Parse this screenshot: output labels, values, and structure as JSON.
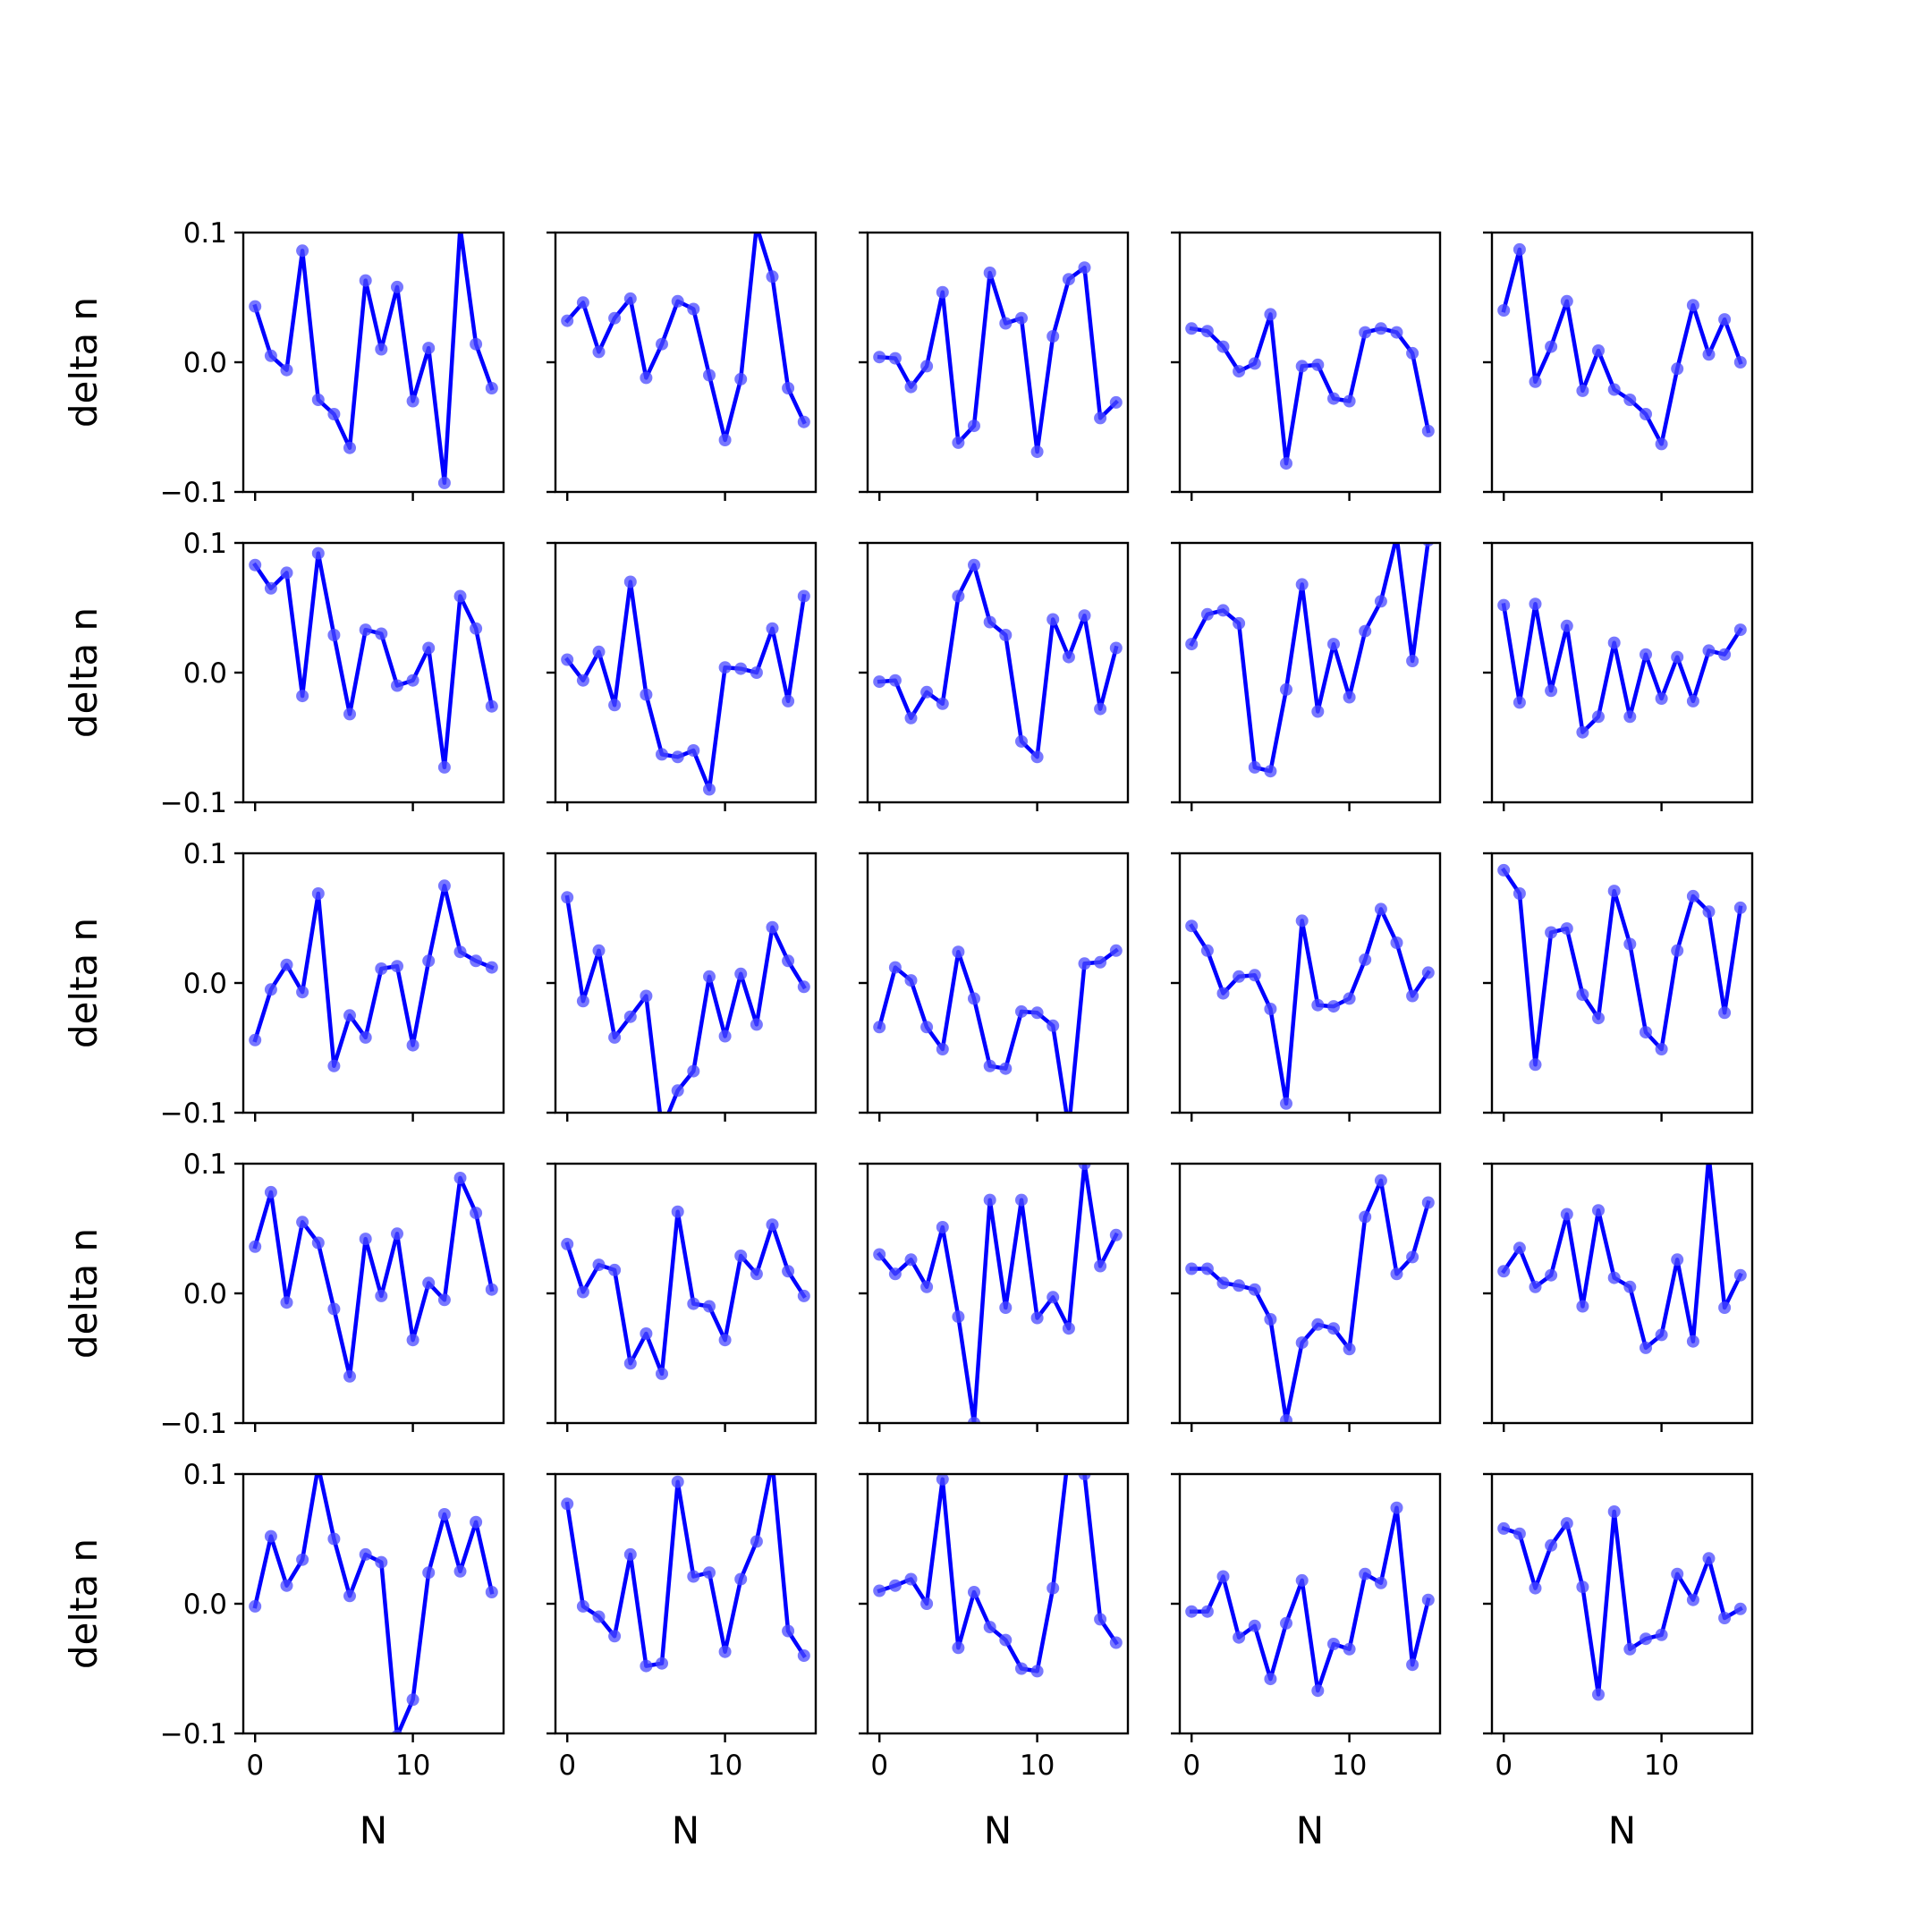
{
  "chart_data": {
    "type": "line",
    "layout": "5x5 grid of subplots",
    "xlabel": "N",
    "ylabel": "delta n",
    "xlim": [
      -0.75,
      15.75
    ],
    "ylim": [
      -0.1,
      0.1
    ],
    "xticks": [
      0,
      10
    ],
    "yticks": [
      -0.1,
      0.0,
      0.1
    ],
    "ytick_labels": [
      "−0.1",
      "0.0",
      "0.1"
    ],
    "grid": false,
    "legend": "none",
    "line_color": "#0000ff",
    "marker_color": "#4a4aff",
    "x": [
      0,
      1,
      2,
      3,
      4,
      5,
      6,
      7,
      8,
      9,
      10,
      11,
      12,
      13,
      14,
      15
    ],
    "panels": [
      [
        0.043,
        0.005,
        -0.006,
        0.086,
        -0.029,
        -0.04,
        -0.066,
        0.063,
        0.01,
        0.058,
        -0.03,
        0.011,
        -0.093,
        0.104,
        0.014,
        -0.02
      ],
      [
        0.032,
        0.046,
        0.008,
        0.034,
        0.049,
        -0.012,
        0.014,
        0.047,
        0.041,
        -0.01,
        -0.06,
        -0.013,
        0.105,
        0.066,
        -0.02,
        -0.046
      ],
      [
        0.004,
        0.003,
        -0.019,
        -0.003,
        0.054,
        -0.062,
        -0.049,
        0.069,
        0.03,
        0.034,
        -0.069,
        0.02,
        0.064,
        0.073,
        -0.043,
        -0.031
      ],
      [
        0.026,
        0.024,
        0.012,
        -0.007,
        -0.001,
        0.037,
        -0.078,
        -0.003,
        -0.002,
        -0.028,
        -0.03,
        0.023,
        0.026,
        0.023,
        0.007,
        -0.053
      ],
      [
        0.04,
        0.087,
        -0.015,
        0.012,
        0.047,
        -0.022,
        0.009,
        -0.021,
        -0.029,
        -0.04,
        -0.063,
        -0.005,
        0.044,
        0.006,
        0.033,
        0.0
      ],
      [
        0.083,
        0.065,
        0.077,
        -0.018,
        0.092,
        0.029,
        -0.032,
        0.033,
        0.03,
        -0.01,
        -0.006,
        0.019,
        -0.073,
        0.059,
        0.034,
        -0.026
      ],
      [
        0.01,
        -0.006,
        0.016,
        -0.025,
        0.07,
        -0.017,
        -0.063,
        -0.065,
        -0.06,
        -0.09,
        0.004,
        0.003,
        0.0,
        0.034,
        -0.022,
        0.059
      ],
      [
        -0.007,
        -0.006,
        -0.035,
        -0.015,
        -0.024,
        0.059,
        0.083,
        0.039,
        0.029,
        -0.053,
        -0.065,
        0.041,
        0.012,
        0.044,
        -0.028,
        0.019
      ],
      [
        0.022,
        0.045,
        0.048,
        0.038,
        -0.073,
        -0.076,
        -0.013,
        0.068,
        -0.03,
        0.022,
        -0.019,
        0.032,
        0.055,
        0.105,
        0.009,
        0.102
      ],
      [
        0.052,
        -0.023,
        0.053,
        -0.014,
        0.036,
        -0.046,
        -0.034,
        0.023,
        -0.034,
        0.014,
        -0.02,
        0.012,
        -0.022,
        0.017,
        0.014,
        0.033
      ],
      [
        -0.044,
        -0.005,
        0.014,
        -0.007,
        0.069,
        -0.064,
        -0.025,
        -0.042,
        0.011,
        0.013,
        -0.048,
        0.017,
        0.075,
        0.024,
        0.017,
        0.012
      ],
      [
        0.066,
        -0.014,
        0.025,
        -0.042,
        -0.026,
        -0.01,
        -0.113,
        -0.083,
        -0.068,
        0.005,
        -0.041,
        0.007,
        -0.032,
        0.043,
        0.017,
        -0.003
      ],
      [
        -0.034,
        0.012,
        0.002,
        -0.034,
        -0.051,
        0.024,
        -0.012,
        -0.064,
        -0.066,
        -0.022,
        -0.023,
        -0.033,
        -0.112,
        0.015,
        0.016,
        0.025
      ],
      [
        0.044,
        0.025,
        -0.008,
        0.005,
        0.006,
        -0.02,
        -0.093,
        0.048,
        -0.017,
        -0.018,
        -0.012,
        0.018,
        0.057,
        0.031,
        -0.01,
        0.008
      ],
      [
        0.087,
        0.069,
        -0.063,
        0.039,
        0.042,
        -0.009,
        -0.027,
        0.071,
        0.03,
        -0.038,
        -0.051,
        0.025,
        0.067,
        0.055,
        -0.023,
        0.058
      ],
      [
        0.036,
        0.078,
        -0.007,
        0.055,
        0.039,
        -0.012,
        -0.064,
        0.042,
        -0.002,
        0.046,
        -0.036,
        0.008,
        -0.005,
        0.089,
        0.062,
        0.003
      ],
      [
        0.038,
        0.001,
        0.022,
        0.018,
        -0.054,
        -0.031,
        -0.062,
        0.063,
        -0.008,
        -0.01,
        -0.036,
        0.029,
        0.015,
        0.053,
        0.017,
        -0.002
      ],
      [
        0.03,
        0.015,
        0.026,
        0.005,
        0.051,
        -0.018,
        -0.1,
        0.072,
        -0.011,
        0.072,
        -0.019,
        -0.003,
        -0.027,
        0.1,
        0.021,
        0.045
      ],
      [
        0.019,
        0.019,
        0.008,
        0.006,
        0.003,
        -0.02,
        -0.098,
        -0.038,
        -0.024,
        -0.027,
        -0.043,
        0.059,
        0.087,
        0.015,
        0.028,
        0.07
      ],
      [
        0.017,
        0.035,
        0.005,
        0.014,
        0.061,
        -0.01,
        0.064,
        0.012,
        0.005,
        -0.042,
        -0.032,
        0.026,
        -0.037,
        0.106,
        -0.011,
        0.014
      ],
      [
        -0.002,
        0.052,
        0.014,
        0.034,
        0.106,
        0.05,
        0.006,
        0.038,
        0.032,
        -0.102,
        -0.074,
        0.024,
        0.069,
        0.025,
        0.063,
        0.009
      ],
      [
        0.077,
        -0.002,
        -0.01,
        -0.025,
        0.038,
        -0.048,
        -0.046,
        0.094,
        0.021,
        0.024,
        -0.037,
        0.019,
        0.048,
        0.109,
        -0.021,
        -0.04
      ],
      [
        0.01,
        0.014,
        0.019,
        0.0,
        0.096,
        -0.034,
        0.009,
        -0.018,
        -0.028,
        -0.05,
        -0.052,
        0.012,
        0.118,
        0.1,
        -0.012,
        -0.03
      ],
      [
        -0.006,
        -0.006,
        0.021,
        -0.026,
        -0.017,
        -0.058,
        -0.015,
        0.018,
        -0.067,
        -0.031,
        -0.035,
        0.023,
        0.016,
        0.074,
        -0.047,
        0.003
      ],
      [
        0.058,
        0.054,
        0.012,
        0.045,
        0.062,
        0.013,
        -0.07,
        0.071,
        -0.035,
        -0.027,
        -0.024,
        0.023,
        0.003,
        0.035,
        -0.011,
        -0.004
      ]
    ]
  }
}
